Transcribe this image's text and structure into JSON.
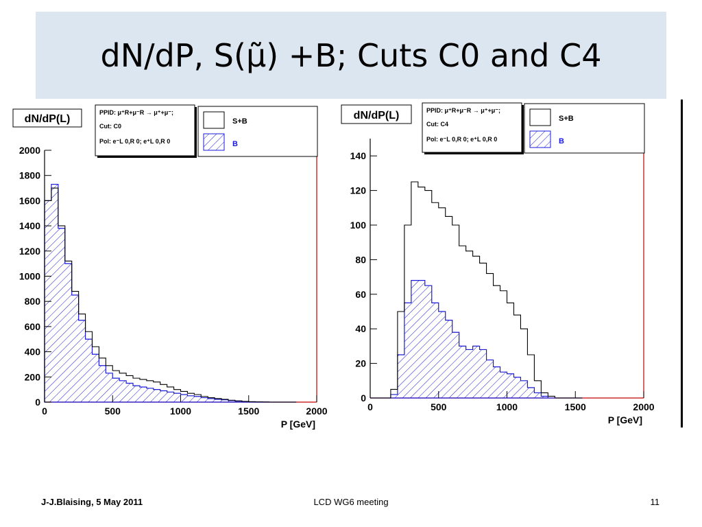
{
  "slide": {
    "title": "dN/dP, S(μ̃) +B; Cuts C0 and C4",
    "footer_left": "J-J.Blaising, 5 May 2011",
    "footer_center": "LCD WG6 meeting",
    "footer_right": "11"
  },
  "colors": {
    "title_band": "#dce6f1",
    "signal_plus_bg": "#000000",
    "background_hist": "#1a1ad8",
    "frame_right": "#c00000"
  },
  "chart_data": [
    {
      "type": "area",
      "title": "dN/dP(L)",
      "xlabel": "P [GeV]",
      "ylabel": "",
      "xlim": [
        0,
        2000
      ],
      "ylim": [
        0,
        2000
      ],
      "xticks": [
        0,
        500,
        1000,
        1500,
        2000
      ],
      "yticks": [
        0,
        200,
        400,
        600,
        800,
        1000,
        1200,
        1400,
        1600,
        1800,
        2000
      ],
      "info_box": {
        "ppid": "PPID: μ⁺R+μ⁻R → μ⁺+μ⁻;",
        "cut": "Cut: C0",
        "pol": "Pol: e⁻L 0,R 0; e⁺L 0,R 0"
      },
      "legend": [
        "S+B",
        "B"
      ],
      "legend_position": "top",
      "x": [
        0,
        50,
        100,
        150,
        200,
        250,
        300,
        350,
        400,
        450,
        500,
        550,
        600,
        650,
        700,
        750,
        800,
        850,
        900,
        950,
        1000,
        1050,
        1100,
        1150,
        1200,
        1250,
        1300,
        1350,
        1400,
        1450,
        1500,
        1550,
        1600,
        1650,
        1700,
        1750,
        1800
      ],
      "series": [
        {
          "name": "S+B",
          "values": [
            1600,
            1700,
            1400,
            1120,
            880,
            700,
            560,
            440,
            350,
            290,
            250,
            230,
            210,
            190,
            180,
            170,
            160,
            140,
            120,
            100,
            85,
            70,
            60,
            45,
            35,
            28,
            22,
            15,
            10,
            6,
            3,
            2,
            1,
            0,
            0,
            0,
            0
          ]
        },
        {
          "name": "B",
          "values": [
            1600,
            1730,
            1380,
            1100,
            850,
            650,
            500,
            380,
            290,
            230,
            190,
            170,
            150,
            130,
            120,
            110,
            100,
            90,
            80,
            70,
            60,
            50,
            45,
            35,
            28,
            22,
            18,
            12,
            8,
            5,
            3,
            2,
            1,
            0,
            0,
            0,
            0
          ]
        }
      ]
    },
    {
      "type": "area",
      "title": "dN/dP(L)",
      "xlabel": "P [GeV]",
      "ylabel": "",
      "xlim": [
        0,
        2000
      ],
      "ylim": [
        0,
        150
      ],
      "xticks": [
        0,
        500,
        1000,
        1500,
        2000
      ],
      "yticks": [
        0,
        20,
        40,
        60,
        80,
        100,
        120,
        140
      ],
      "info_box": {
        "ppid": "PPID: μ⁺R+μ⁻R → μ⁺+μ⁻;",
        "cut": "Cut: C4",
        "pol": "Pol: e⁻L 0,R 0; e⁺L 0,R 0"
      },
      "legend": [
        "S+B",
        "B"
      ],
      "legend_position": "top",
      "x": [
        0,
        50,
        100,
        150,
        200,
        250,
        300,
        350,
        400,
        450,
        500,
        550,
        600,
        650,
        700,
        750,
        800,
        850,
        900,
        950,
        1000,
        1050,
        1100,
        1150,
        1200,
        1250,
        1300,
        1350,
        1400,
        1450,
        1500
      ],
      "series": [
        {
          "name": "S+B",
          "values": [
            0,
            0,
            0,
            5,
            50,
            100,
            125,
            122,
            120,
            113,
            110,
            105,
            100,
            88,
            85,
            82,
            78,
            72,
            65,
            62,
            55,
            48,
            40,
            25,
            10,
            3,
            1,
            0,
            0,
            0,
            0
          ]
        },
        {
          "name": "B",
          "values": [
            0,
            0,
            0,
            2,
            25,
            55,
            68,
            68,
            65,
            55,
            50,
            45,
            38,
            30,
            28,
            30,
            28,
            22,
            18,
            15,
            14,
            12,
            10,
            6,
            3,
            1,
            0,
            0,
            0,
            0,
            0
          ]
        }
      ]
    }
  ]
}
